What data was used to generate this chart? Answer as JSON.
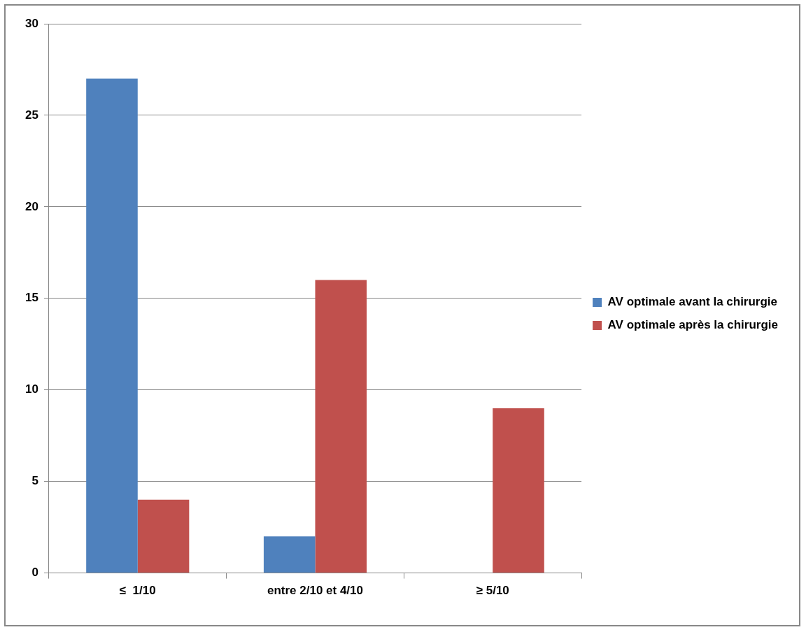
{
  "chart_data": {
    "type": "bar",
    "categories": [
      "≤  1/10",
      "entre 2/10 et 4/10",
      "≥ 5/10"
    ],
    "series": [
      {
        "name": "AV optimale avant la chirurgie",
        "color": "#4f81bd",
        "values": [
          27,
          2,
          0
        ]
      },
      {
        "name": "AV optimale après la chirurgie",
        "color": "#c0504d",
        "values": [
          4,
          16,
          9
        ]
      }
    ],
    "ylim": [
      0,
      30
    ],
    "yticks": [
      0,
      5,
      10,
      15,
      20,
      25,
      30
    ],
    "grid": "y",
    "legend": "right"
  }
}
